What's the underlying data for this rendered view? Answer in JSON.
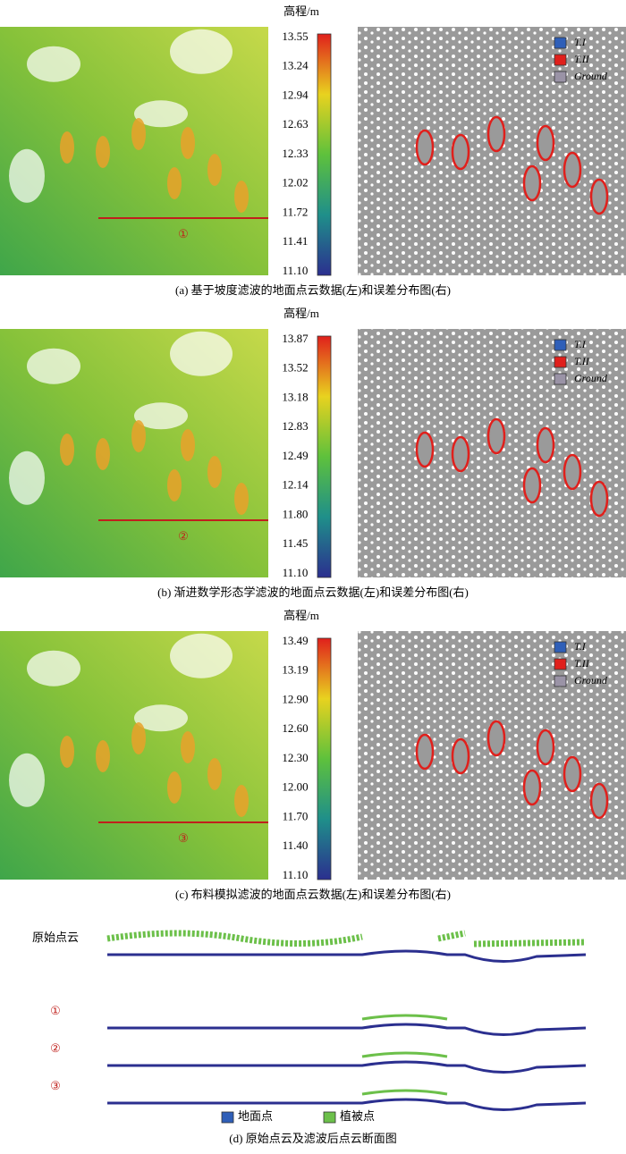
{
  "panels": [
    {
      "colorbar_title": "高程/m",
      "ticks": [
        "13.55",
        "13.24",
        "12.94",
        "12.63",
        "12.33",
        "12.02",
        "11.72",
        "11.41",
        "11.10"
      ],
      "marker": "①",
      "legend": [
        "T.I",
        "T.II",
        "Ground"
      ],
      "caption": "(a) 基于坡度滤波的地面点云数据(左)和误差分布图(右)"
    },
    {
      "colorbar_title": "高程/m",
      "ticks": [
        "13.87",
        "13.52",
        "13.18",
        "12.83",
        "12.49",
        "12.14",
        "11.80",
        "11.45",
        "11.10"
      ],
      "marker": "②",
      "legend": [
        "T.I",
        "T.II",
        "Ground"
      ],
      "caption": "(b) 渐进数学形态学滤波的地面点云数据(左)和误差分布图(右)"
    },
    {
      "colorbar_title": "高程/m",
      "ticks": [
        "13.49",
        "13.19",
        "12.90",
        "12.60",
        "12.30",
        "12.00",
        "11.70",
        "11.40",
        "11.10"
      ],
      "marker": "③",
      "legend": [
        "T.I",
        "T.II",
        "Ground"
      ],
      "caption": "(c) 布料模拟滤波的地面点云数据(左)和误差分布图(右)"
    }
  ],
  "profiles": {
    "rows": [
      "原始点云",
      "①",
      "②",
      "③"
    ],
    "legend": [
      "地面点",
      "植被点"
    ],
    "caption": "(d) 原始点云及滤波后点云断面图"
  }
}
